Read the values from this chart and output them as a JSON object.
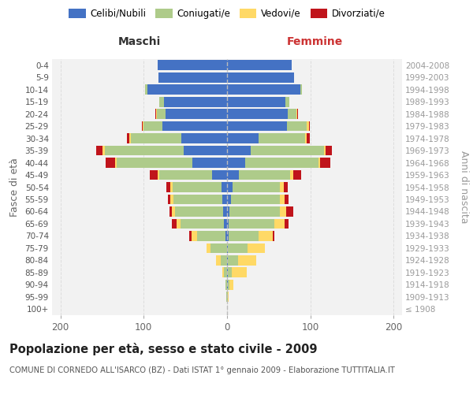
{
  "age_groups": [
    "100+",
    "95-99",
    "90-94",
    "85-89",
    "80-84",
    "75-79",
    "70-74",
    "65-69",
    "60-64",
    "55-59",
    "50-54",
    "45-49",
    "40-44",
    "35-39",
    "30-34",
    "25-29",
    "20-24",
    "15-19",
    "10-14",
    "5-9",
    "0-4"
  ],
  "birth_years": [
    "≤ 1908",
    "1909-1913",
    "1914-1918",
    "1919-1923",
    "1924-1928",
    "1929-1933",
    "1934-1938",
    "1939-1943",
    "1944-1948",
    "1949-1953",
    "1954-1958",
    "1959-1963",
    "1964-1968",
    "1969-1973",
    "1974-1978",
    "1979-1983",
    "1984-1988",
    "1989-1993",
    "1994-1998",
    "1999-2003",
    "2004-2008"
  ],
  "males_celibi": [
    0,
    0,
    0,
    0,
    0,
    0,
    2,
    4,
    5,
    6,
    7,
    18,
    42,
    52,
    55,
    78,
    74,
    76,
    96,
    82,
    83
  ],
  "males_coniugati": [
    0,
    1,
    2,
    4,
    8,
    20,
    34,
    52,
    57,
    58,
    58,
    63,
    90,
    95,
    60,
    22,
    10,
    5,
    2,
    0,
    0
  ],
  "males_vedovi": [
    0,
    0,
    0,
    2,
    5,
    5,
    7,
    5,
    4,
    4,
    3,
    2,
    2,
    2,
    2,
    1,
    1,
    0,
    0,
    0,
    0
  ],
  "males_divorziati": [
    0,
    0,
    0,
    0,
    0,
    0,
    2,
    5,
    3,
    3,
    5,
    10,
    12,
    8,
    3,
    1,
    1,
    0,
    0,
    0,
    0
  ],
  "females_nubili": [
    0,
    0,
    1,
    1,
    1,
    1,
    2,
    2,
    3,
    5,
    7,
    14,
    22,
    28,
    38,
    72,
    73,
    70,
    88,
    80,
    78
  ],
  "females_coniugate": [
    0,
    1,
    2,
    5,
    12,
    24,
    36,
    55,
    60,
    58,
    56,
    62,
    88,
    88,
    56,
    24,
    10,
    5,
    2,
    0,
    0
  ],
  "females_vedove": [
    0,
    1,
    5,
    18,
    22,
    20,
    17,
    12,
    8,
    6,
    5,
    3,
    2,
    2,
    2,
    2,
    1,
    0,
    0,
    0,
    0
  ],
  "females_divorziate": [
    0,
    0,
    0,
    0,
    0,
    0,
    2,
    5,
    8,
    5,
    5,
    10,
    12,
    8,
    3,
    1,
    1,
    0,
    0,
    0,
    0
  ],
  "color_celibi": "#4472C4",
  "color_coniugati": "#AECB8A",
  "color_vedovi": "#FFD966",
  "color_divorziati": "#C0141B",
  "xlim": 210,
  "title": "Popolazione per età, sesso e stato civile - 2009",
  "subtitle": "COMUNE DI CORNEDO ALL'ISARCO (BZ) - Dati ISTAT 1° gennaio 2009 - Elaborazione TUTTITALIA.IT",
  "ylabel_left": "Fasce di età",
  "ylabel_right": "Anni di nascita",
  "label_maschi": "Maschi",
  "label_femmine": "Femmine",
  "legend_labels": [
    "Celibi/Nubili",
    "Coniugati/e",
    "Vedovi/e",
    "Divorziati/e"
  ],
  "bg_color": "#FFFFFF",
  "plot_bg": "#F2F2F2",
  "grid_color": "#DDDDDD"
}
